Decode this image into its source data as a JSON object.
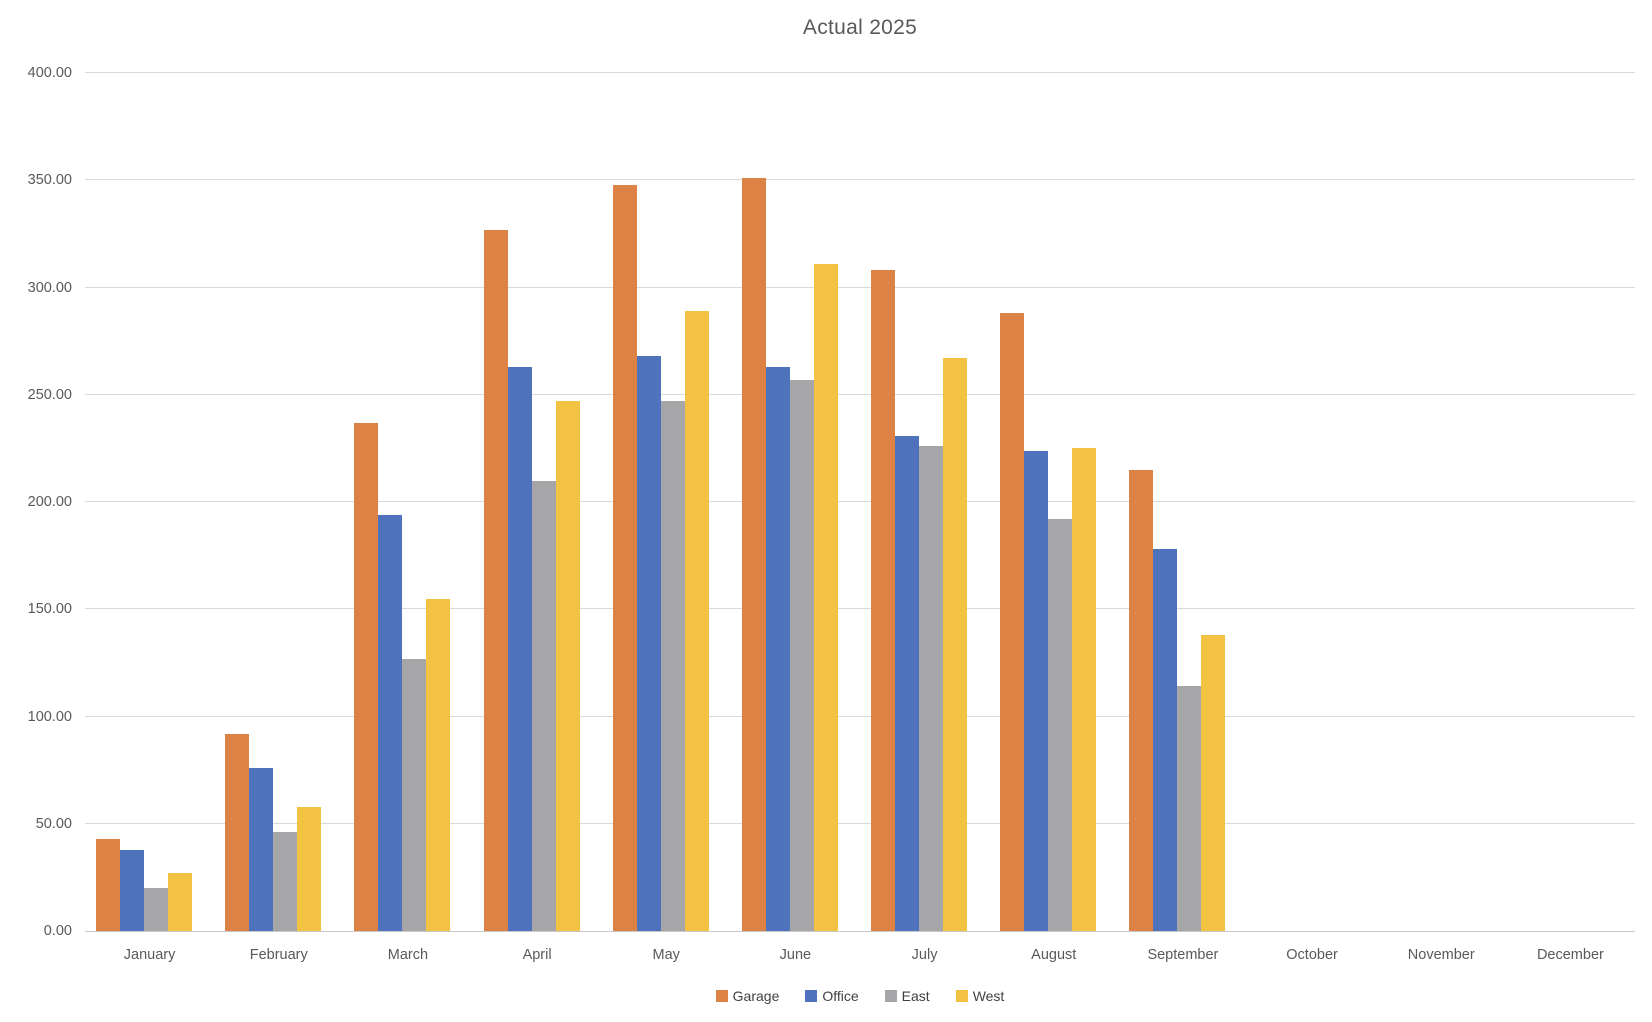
{
  "chart_data": {
    "type": "bar",
    "title": "Actual 2025",
    "categories": [
      "January",
      "February",
      "March",
      "April",
      "May",
      "June",
      "July",
      "August",
      "September",
      "October",
      "November",
      "December"
    ],
    "series": [
      {
        "name": "Garage",
        "color": "#dc8244",
        "values": [
          43,
          92,
          237,
          327,
          348,
          351,
          308,
          288,
          215,
          null,
          null,
          null
        ]
      },
      {
        "name": "Office",
        "color": "#4f72bd",
        "values": [
          38,
          76,
          194,
          263,
          268,
          263,
          231,
          224,
          178,
          null,
          null,
          null
        ]
      },
      {
        "name": "East",
        "color": "#a6a6a8",
        "values": [
          20,
          46,
          127,
          210,
          247,
          257,
          226,
          192,
          114,
          null,
          null,
          null
        ]
      },
      {
        "name": "West",
        "color": "#f4c242",
        "values": [
          27,
          58,
          155,
          247,
          289,
          311,
          267,
          225,
          138,
          null,
          null,
          null
        ]
      }
    ],
    "ylim": [
      0,
      400
    ],
    "ytick_step": 50,
    "yticks": [
      "0.00",
      "50.00",
      "100.00",
      "150.00",
      "200.00",
      "250.00",
      "300.00",
      "350.00",
      "400.00"
    ],
    "grid": true,
    "legend_position": "bottom",
    "colors": {
      "gridline": "#d9d9d9",
      "axis_line": "#c8c8c8",
      "tick_text": "#595959",
      "title_text": "#595959",
      "background": "#ffffff"
    }
  }
}
